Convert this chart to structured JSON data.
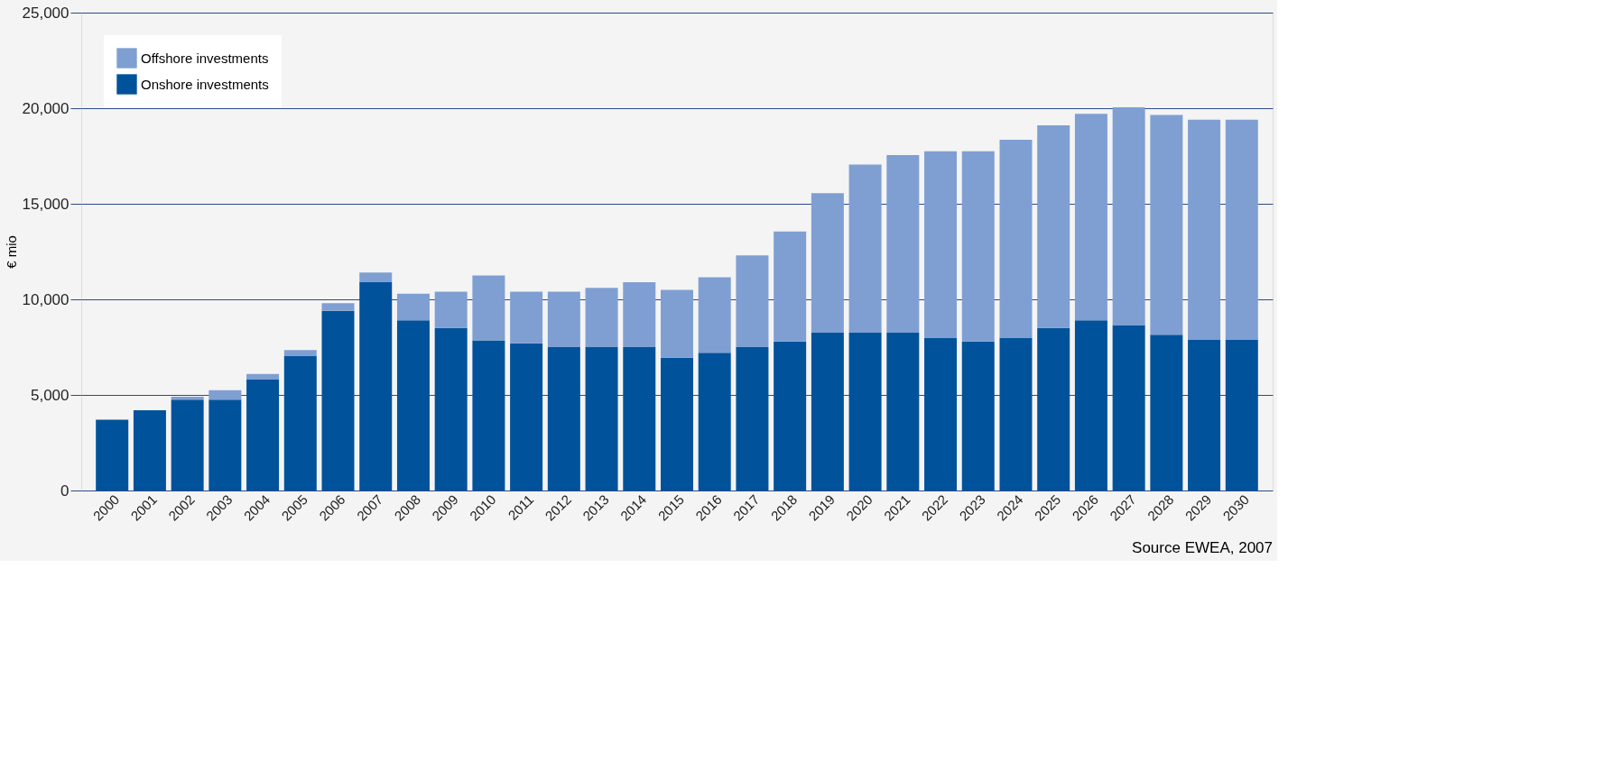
{
  "chart_data": {
    "type": "bar",
    "stacked": true,
    "ylabel": "€ mio",
    "categories": [
      "2000",
      "2001",
      "2002",
      "2003",
      "2004",
      "2005",
      "2006",
      "2007",
      "2008",
      "2009",
      "2010",
      "2011",
      "2012",
      "2013",
      "2014",
      "2015",
      "2016",
      "2017",
      "2018",
      "2019",
      "2020",
      "2021",
      "2022",
      "2023",
      "2024",
      "2025",
      "2026",
      "2027",
      "2028",
      "2029",
      "2030"
    ],
    "series": [
      {
        "name": "Onshore investments",
        "color": "#00529b",
        "values": [
          3700,
          4200,
          4750,
          4750,
          5800,
          7050,
          9400,
          10900,
          8900,
          8500,
          7850,
          7700,
          7500,
          7500,
          7500,
          6950,
          7200,
          7500,
          7800,
          8250,
          8250,
          8250,
          8000,
          7800,
          8000,
          8500,
          8900,
          8650,
          8150,
          7900,
          7900
        ]
      },
      {
        "name": "Offshore investments",
        "color": "#7f9fd2",
        "values": [
          0,
          0,
          150,
          500,
          300,
          300,
          400,
          500,
          1400,
          1900,
          3400,
          2700,
          2900,
          3100,
          3400,
          3550,
          3950,
          4800,
          5750,
          7300,
          8800,
          9300,
          9750,
          9950,
          10350,
          10600,
          10800,
          11400,
          11500,
          11500,
          11500
        ]
      }
    ],
    "ylim": [
      0,
      25000
    ],
    "yticks": [
      {
        "value": 0,
        "label": "0"
      },
      {
        "value": 5000,
        "label": "5,000"
      },
      {
        "value": 10000,
        "label": "10,000"
      },
      {
        "value": 15000,
        "label": "15,000"
      },
      {
        "value": 20000,
        "label": "20,000"
      },
      {
        "value": 25000,
        "label": "25,000"
      }
    ],
    "grid": "y",
    "legend": "top left",
    "annotations": [
      "Source EWEA, 2007"
    ]
  }
}
